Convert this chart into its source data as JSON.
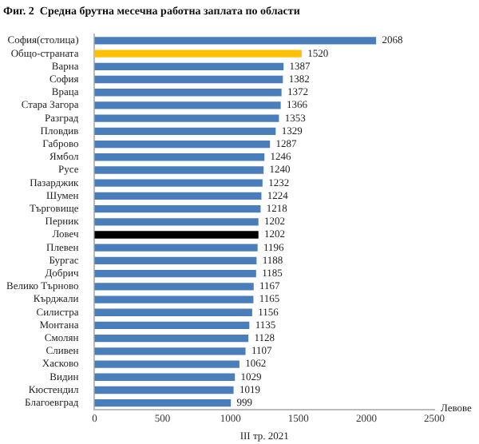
{
  "chart_data": {
    "type": "bar",
    "orientation": "horizontal",
    "title": "Фиг. 2  Средна брутна месечна работна заплата по области",
    "categories": [
      "София(столица)",
      "Общо-страната",
      "Варна",
      "София",
      "Враца",
      "Стара Загора",
      "Разград",
      "Пловдив",
      "Габрово",
      "Ямбол",
      "Русе",
      "Пазарджик",
      "Шумен",
      "Търговище",
      "Перник",
      "Ловеч",
      "Плевен",
      "Бургас",
      "Добрич",
      "Велико Търново",
      "Кърджали",
      "Силистра",
      "Монтана",
      "Смолян",
      "Сливен",
      "Хасково",
      "Видин",
      "Кюстендил",
      "Благоевград"
    ],
    "values": [
      2068,
      1520,
      1387,
      1382,
      1372,
      1366,
      1353,
      1329,
      1287,
      1246,
      1240,
      1232,
      1224,
      1218,
      1202,
      1202,
      1196,
      1188,
      1185,
      1167,
      1165,
      1156,
      1135,
      1128,
      1107,
      1062,
      1029,
      1019,
      999
    ],
    "colors": [
      "#4a7ebb",
      "#ffc000",
      "#4a7ebb",
      "#4a7ebb",
      "#4a7ebb",
      "#4a7ebb",
      "#4a7ebb",
      "#4a7ebb",
      "#4a7ebb",
      "#4a7ebb",
      "#4a7ebb",
      "#4a7ebb",
      "#4a7ebb",
      "#4a7ebb",
      "#4a7ebb",
      "#000000",
      "#4a7ebb",
      "#4a7ebb",
      "#4a7ebb",
      "#4a7ebb",
      "#4a7ebb",
      "#4a7ebb",
      "#4a7ebb",
      "#4a7ebb",
      "#4a7ebb",
      "#4a7ebb",
      "#4a7ebb",
      "#4a7ebb",
      "#4a7ebb"
    ],
    "xlim": [
      0,
      2500
    ],
    "xticks": [
      0,
      500,
      1000,
      1500,
      2000,
      2500
    ],
    "xlabel": "III тр. 2021",
    "annotations": [
      "Левове"
    ],
    "data_labels": true,
    "grid": false,
    "legend": false
  }
}
